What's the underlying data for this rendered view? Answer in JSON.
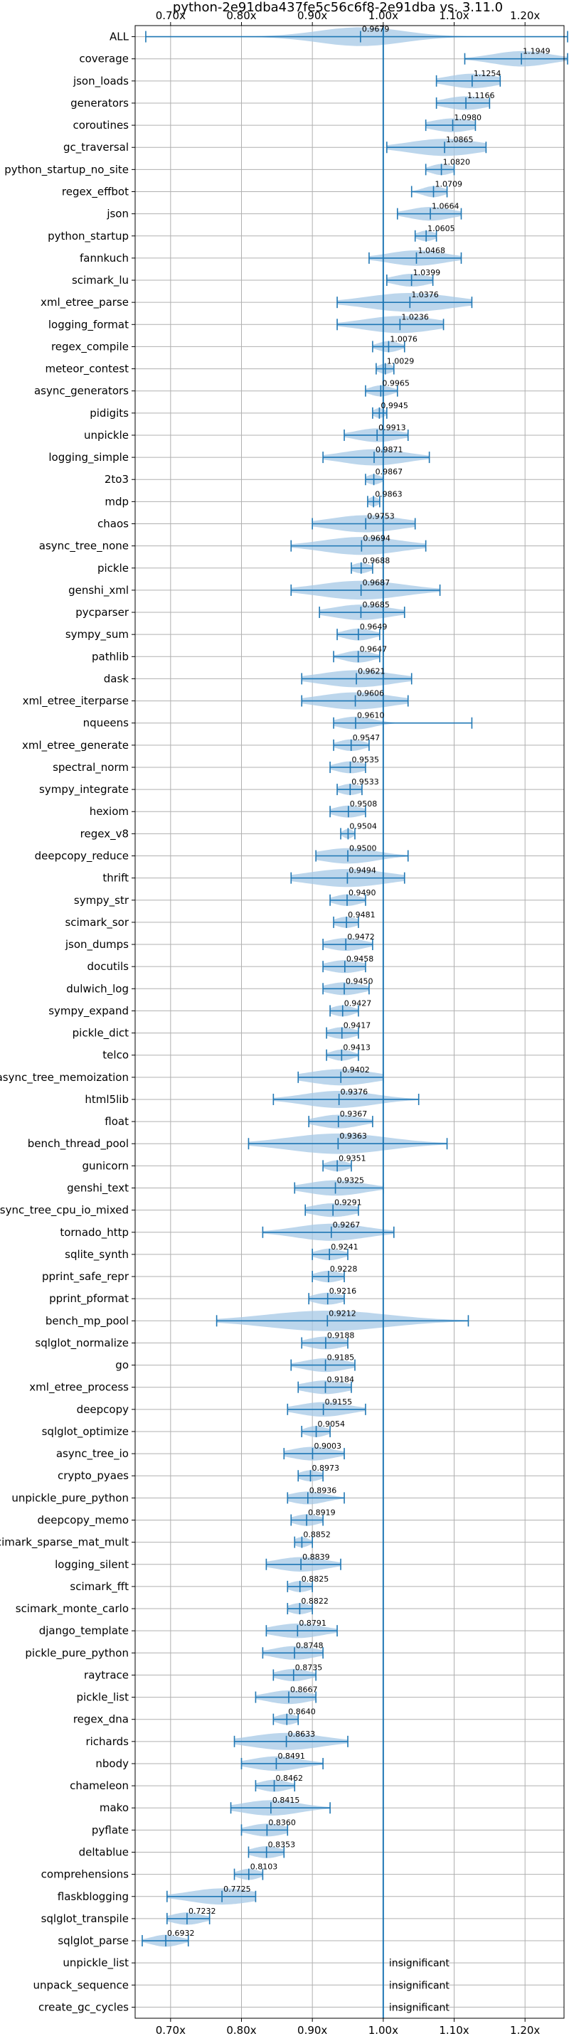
{
  "chart_data": {
    "type": "violin",
    "title": "python-2e91dba437fe5c56c6f8-2e91dba vs. 3.11.0",
    "xlim": [
      0.65,
      1.255
    ],
    "xticks": [
      0.7,
      0.8,
      0.9,
      1.0,
      1.1,
      1.2
    ],
    "xtick_labels": [
      "0.70x",
      "0.80x",
      "0.90x",
      "1.00x",
      "1.10x",
      "1.20x"
    ],
    "reference_line": 1.0,
    "grid": true,
    "colors": {
      "violin": "#a6c8e6",
      "line": "#1f77b4",
      "grid": "#b0b0b0"
    },
    "insignificant_label": "insignificant",
    "benchmarks": [
      {
        "name": "ALL",
        "value": 0.9679,
        "label": "0.9679",
        "min": 0.665,
        "max": 1.26,
        "spread": 0.06
      },
      {
        "name": "coverage",
        "value": 1.1949,
        "label": "1.1949",
        "min": 1.115,
        "max": 1.26,
        "spread": 0.04
      },
      {
        "name": "json_loads",
        "value": 1.1254,
        "label": "1.1254",
        "min": 1.075,
        "max": 1.165,
        "spread": 0.035
      },
      {
        "name": "generators",
        "value": 1.1166,
        "label": "1.1166",
        "min": 1.075,
        "max": 1.15,
        "spread": 0.03
      },
      {
        "name": "coroutines",
        "value": 1.098,
        "label": "1.0980",
        "min": 1.06,
        "max": 1.13,
        "spread": 0.03
      },
      {
        "name": "gc_traversal",
        "value": 1.0865,
        "label": "1.0865",
        "min": 1.005,
        "max": 1.145,
        "spread": 0.05
      },
      {
        "name": "python_startup_no_site",
        "value": 1.082,
        "label": "1.0820",
        "min": 1.06,
        "max": 1.1,
        "spread": 0.015
      },
      {
        "name": "regex_effbot",
        "value": 1.0709,
        "label": "1.0709",
        "min": 1.04,
        "max": 1.09,
        "spread": 0.015
      },
      {
        "name": "json",
        "value": 1.0664,
        "label": "1.0664",
        "min": 1.02,
        "max": 1.11,
        "spread": 0.03
      },
      {
        "name": "python_startup",
        "value": 1.0605,
        "label": "1.0605",
        "min": 1.045,
        "max": 1.075,
        "spread": 0.012
      },
      {
        "name": "fannkuch",
        "value": 1.0468,
        "label": "1.0468",
        "min": 0.98,
        "max": 1.11,
        "spread": 0.04
      },
      {
        "name": "scimark_lu",
        "value": 1.0399,
        "label": "1.0399",
        "min": 1.005,
        "max": 1.07,
        "spread": 0.025
      },
      {
        "name": "xml_etree_parse",
        "value": 1.0376,
        "label": "1.0376",
        "min": 0.935,
        "max": 1.125,
        "spread": 0.06
      },
      {
        "name": "logging_format",
        "value": 1.0236,
        "label": "1.0236",
        "min": 0.935,
        "max": 1.085,
        "spread": 0.05
      },
      {
        "name": "regex_compile",
        "value": 1.0076,
        "label": "1.0076",
        "min": 0.985,
        "max": 1.03,
        "spread": 0.015
      },
      {
        "name": "meteor_contest",
        "value": 1.0029,
        "label": "1.0029",
        "min": 0.99,
        "max": 1.015,
        "spread": 0.01
      },
      {
        "name": "async_generators",
        "value": 0.9965,
        "label": "0.9965",
        "min": 0.975,
        "max": 1.02,
        "spread": 0.015
      },
      {
        "name": "pidigits",
        "value": 0.9945,
        "label": "0.9945",
        "min": 0.985,
        "max": 1.005,
        "spread": 0.008
      },
      {
        "name": "unpickle",
        "value": 0.9913,
        "label": "0.9913",
        "min": 0.945,
        "max": 1.035,
        "spread": 0.03
      },
      {
        "name": "logging_simple",
        "value": 0.9871,
        "label": "0.9871",
        "min": 0.915,
        "max": 1.065,
        "spread": 0.045
      },
      {
        "name": "2to3",
        "value": 0.9867,
        "label": "0.9867",
        "min": 0.975,
        "max": 1.0,
        "spread": 0.01
      },
      {
        "name": "mdp",
        "value": 0.9863,
        "label": "0.9863",
        "min": 0.978,
        "max": 0.995,
        "spread": 0.007
      },
      {
        "name": "chaos",
        "value": 0.9753,
        "label": "0.9753",
        "min": 0.9,
        "max": 1.045,
        "spread": 0.05
      },
      {
        "name": "async_tree_none",
        "value": 0.9694,
        "label": "0.9694",
        "min": 0.87,
        "max": 1.06,
        "spread": 0.055
      },
      {
        "name": "pickle",
        "value": 0.9688,
        "label": "0.9688",
        "min": 0.955,
        "max": 0.985,
        "spread": 0.012
      },
      {
        "name": "genshi_xml",
        "value": 0.9687,
        "label": "0.9687",
        "min": 0.87,
        "max": 1.08,
        "spread": 0.06
      },
      {
        "name": "pycparser",
        "value": 0.9685,
        "label": "0.9685",
        "min": 0.91,
        "max": 1.03,
        "spread": 0.04
      },
      {
        "name": "sympy_sum",
        "value": 0.9649,
        "label": "0.9649",
        "min": 0.935,
        "max": 0.995,
        "spread": 0.02
      },
      {
        "name": "pathlib",
        "value": 0.9647,
        "label": "0.9647",
        "min": 0.93,
        "max": 0.995,
        "spread": 0.02
      },
      {
        "name": "dask",
        "value": 0.9621,
        "label": "0.9621",
        "min": 0.885,
        "max": 1.04,
        "spread": 0.05
      },
      {
        "name": "xml_etree_iterparse",
        "value": 0.9606,
        "label": "0.9606",
        "min": 0.885,
        "max": 1.035,
        "spread": 0.05
      },
      {
        "name": "nqueens",
        "value": 0.961,
        "label": "0.9610",
        "min": 0.93,
        "max": 1.125,
        "spread": 0.025
      },
      {
        "name": "xml_etree_generate",
        "value": 0.9547,
        "label": "0.9547",
        "min": 0.93,
        "max": 0.98,
        "spread": 0.018
      },
      {
        "name": "spectral_norm",
        "value": 0.9535,
        "label": "0.9535",
        "min": 0.925,
        "max": 0.975,
        "spread": 0.02
      },
      {
        "name": "sympy_integrate",
        "value": 0.9533,
        "label": "0.9533",
        "min": 0.935,
        "max": 0.97,
        "spread": 0.015
      },
      {
        "name": "hexiom",
        "value": 0.9508,
        "label": "0.9508",
        "min": 0.925,
        "max": 0.975,
        "spread": 0.02
      },
      {
        "name": "regex_v8",
        "value": 0.9504,
        "label": "0.9504",
        "min": 0.94,
        "max": 0.96,
        "spread": 0.007
      },
      {
        "name": "deepcopy_reduce",
        "value": 0.95,
        "label": "0.9500",
        "min": 0.905,
        "max": 1.035,
        "spread": 0.04
      },
      {
        "name": "thrift",
        "value": 0.9494,
        "label": "0.9494",
        "min": 0.87,
        "max": 1.03,
        "spread": 0.055
      },
      {
        "name": "sympy_str",
        "value": 0.949,
        "label": "0.9490",
        "min": 0.925,
        "max": 0.975,
        "spread": 0.018
      },
      {
        "name": "scimark_sor",
        "value": 0.9481,
        "label": "0.9481",
        "min": 0.93,
        "max": 0.965,
        "spread": 0.015
      },
      {
        "name": "json_dumps",
        "value": 0.9472,
        "label": "0.9472",
        "min": 0.915,
        "max": 0.985,
        "spread": 0.025
      },
      {
        "name": "docutils",
        "value": 0.9458,
        "label": "0.9458",
        "min": 0.915,
        "max": 0.975,
        "spread": 0.025
      },
      {
        "name": "dulwich_log",
        "value": 0.945,
        "label": "0.9450",
        "min": 0.915,
        "max": 0.98,
        "spread": 0.025
      },
      {
        "name": "sympy_expand",
        "value": 0.9427,
        "label": "0.9427",
        "min": 0.925,
        "max": 0.965,
        "spread": 0.015
      },
      {
        "name": "pickle_dict",
        "value": 0.9417,
        "label": "0.9417",
        "min": 0.92,
        "max": 0.965,
        "spread": 0.018
      },
      {
        "name": "telco",
        "value": 0.9413,
        "label": "0.9413",
        "min": 0.92,
        "max": 0.965,
        "spread": 0.015
      },
      {
        "name": "async_tree_memoization",
        "value": 0.9402,
        "label": "0.9402",
        "min": 0.88,
        "max": 1.0,
        "spread": 0.045
      },
      {
        "name": "html5lib",
        "value": 0.9376,
        "label": "0.9376",
        "min": 0.845,
        "max": 1.05,
        "spread": 0.05
      },
      {
        "name": "float",
        "value": 0.9367,
        "label": "0.9367",
        "min": 0.895,
        "max": 0.985,
        "spread": 0.03
      },
      {
        "name": "bench_thread_pool",
        "value": 0.9363,
        "label": "0.9363",
        "min": 0.81,
        "max": 1.09,
        "spread": 0.07
      },
      {
        "name": "gunicorn",
        "value": 0.9351,
        "label": "0.9351",
        "min": 0.915,
        "max": 0.955,
        "spread": 0.015
      },
      {
        "name": "genshi_text",
        "value": 0.9325,
        "label": "0.9325",
        "min": 0.875,
        "max": 1.0,
        "spread": 0.04
      },
      {
        "name": "async_tree_cpu_io_mixed",
        "value": 0.9291,
        "label": "0.9291",
        "min": 0.89,
        "max": 0.965,
        "spread": 0.03
      },
      {
        "name": "tornado_http",
        "value": 0.9267,
        "label": "0.9267",
        "min": 0.83,
        "max": 1.015,
        "spread": 0.05
      },
      {
        "name": "sqlite_synth",
        "value": 0.9241,
        "label": "0.9241",
        "min": 0.9,
        "max": 0.95,
        "spread": 0.018
      },
      {
        "name": "pprint_safe_repr",
        "value": 0.9228,
        "label": "0.9228",
        "min": 0.9,
        "max": 0.945,
        "spread": 0.018
      },
      {
        "name": "pprint_pformat",
        "value": 0.9216,
        "label": "0.9216",
        "min": 0.895,
        "max": 0.945,
        "spread": 0.02
      },
      {
        "name": "bench_mp_pool",
        "value": 0.9212,
        "label": "0.9212",
        "min": 0.765,
        "max": 1.12,
        "spread": 0.085
      },
      {
        "name": "sqlglot_normalize",
        "value": 0.9188,
        "label": "0.9188",
        "min": 0.885,
        "max": 0.95,
        "spread": 0.025
      },
      {
        "name": "go",
        "value": 0.9185,
        "label": "0.9185",
        "min": 0.87,
        "max": 0.96,
        "spread": 0.03
      },
      {
        "name": "xml_etree_process",
        "value": 0.9184,
        "label": "0.9184",
        "min": 0.88,
        "max": 0.955,
        "spread": 0.03
      },
      {
        "name": "deepcopy",
        "value": 0.9155,
        "label": "0.9155",
        "min": 0.865,
        "max": 0.975,
        "spread": 0.035
      },
      {
        "name": "sqlglot_optimize",
        "value": 0.9054,
        "label": "0.9054",
        "min": 0.885,
        "max": 0.925,
        "spread": 0.015
      },
      {
        "name": "async_tree_io",
        "value": 0.9003,
        "label": "0.9003",
        "min": 0.86,
        "max": 0.945,
        "spread": 0.03
      },
      {
        "name": "crypto_pyaes",
        "value": 0.8973,
        "label": "0.8973",
        "min": 0.88,
        "max": 0.915,
        "spread": 0.015
      },
      {
        "name": "unpickle_pure_python",
        "value": 0.8936,
        "label": "0.8936",
        "min": 0.865,
        "max": 0.945,
        "spread": 0.025
      },
      {
        "name": "deepcopy_memo",
        "value": 0.8919,
        "label": "0.8919",
        "min": 0.87,
        "max": 0.915,
        "spread": 0.018
      },
      {
        "name": "scimark_sparse_mat_mult",
        "value": 0.8852,
        "label": "0.8852",
        "min": 0.875,
        "max": 0.9,
        "spread": 0.01
      },
      {
        "name": "logging_silent",
        "value": 0.8839,
        "label": "0.8839",
        "min": 0.835,
        "max": 0.94,
        "spread": 0.035
      },
      {
        "name": "scimark_fft",
        "value": 0.8825,
        "label": "0.8825",
        "min": 0.865,
        "max": 0.9,
        "spread": 0.015
      },
      {
        "name": "scimark_monte_carlo",
        "value": 0.8822,
        "label": "0.8822",
        "min": 0.865,
        "max": 0.9,
        "spread": 0.015
      },
      {
        "name": "django_template",
        "value": 0.8791,
        "label": "0.8791",
        "min": 0.835,
        "max": 0.935,
        "spread": 0.035
      },
      {
        "name": "pickle_pure_python",
        "value": 0.8748,
        "label": "0.8748",
        "min": 0.83,
        "max": 0.915,
        "spread": 0.03
      },
      {
        "name": "raytrace",
        "value": 0.8735,
        "label": "0.8735",
        "min": 0.845,
        "max": 0.905,
        "spread": 0.022
      },
      {
        "name": "pickle_list",
        "value": 0.8667,
        "label": "0.8667",
        "min": 0.82,
        "max": 0.905,
        "spread": 0.03
      },
      {
        "name": "regex_dna",
        "value": 0.864,
        "label": "0.8640",
        "min": 0.845,
        "max": 0.88,
        "spread": 0.014
      },
      {
        "name": "richards",
        "value": 0.8633,
        "label": "0.8633",
        "min": 0.79,
        "max": 0.95,
        "spread": 0.05
      },
      {
        "name": "nbody",
        "value": 0.8491,
        "label": "0.8491",
        "min": 0.8,
        "max": 0.915,
        "spread": 0.035
      },
      {
        "name": "chameleon",
        "value": 0.8462,
        "label": "0.8462",
        "min": 0.82,
        "max": 0.875,
        "spread": 0.02
      },
      {
        "name": "mako",
        "value": 0.8415,
        "label": "0.8415",
        "min": 0.785,
        "max": 0.925,
        "spread": 0.04
      },
      {
        "name": "pyflate",
        "value": 0.836,
        "label": "0.8360",
        "min": 0.8,
        "max": 0.865,
        "spread": 0.025
      },
      {
        "name": "deltablue",
        "value": 0.8353,
        "label": "0.8353",
        "min": 0.81,
        "max": 0.86,
        "spread": 0.02
      },
      {
        "name": "comprehensions",
        "value": 0.8103,
        "label": "0.8103",
        "min": 0.79,
        "max": 0.83,
        "spread": 0.015
      },
      {
        "name": "flaskblogging",
        "value": 0.7725,
        "label": "0.7725",
        "min": 0.695,
        "max": 0.82,
        "spread": 0.045
      },
      {
        "name": "sqlglot_transpile",
        "value": 0.7232,
        "label": "0.7232",
        "min": 0.695,
        "max": 0.755,
        "spread": 0.022
      },
      {
        "name": "sqlglot_parse",
        "value": 0.6932,
        "label": "0.6932",
        "min": 0.66,
        "max": 0.725,
        "spread": 0.02
      },
      {
        "name": "unpickle_list",
        "value": null,
        "label": "",
        "insignificant": true
      },
      {
        "name": "unpack_sequence",
        "value": null,
        "label": "",
        "insignificant": true
      },
      {
        "name": "create_gc_cycles",
        "value": null,
        "label": "",
        "insignificant": true
      }
    ]
  }
}
